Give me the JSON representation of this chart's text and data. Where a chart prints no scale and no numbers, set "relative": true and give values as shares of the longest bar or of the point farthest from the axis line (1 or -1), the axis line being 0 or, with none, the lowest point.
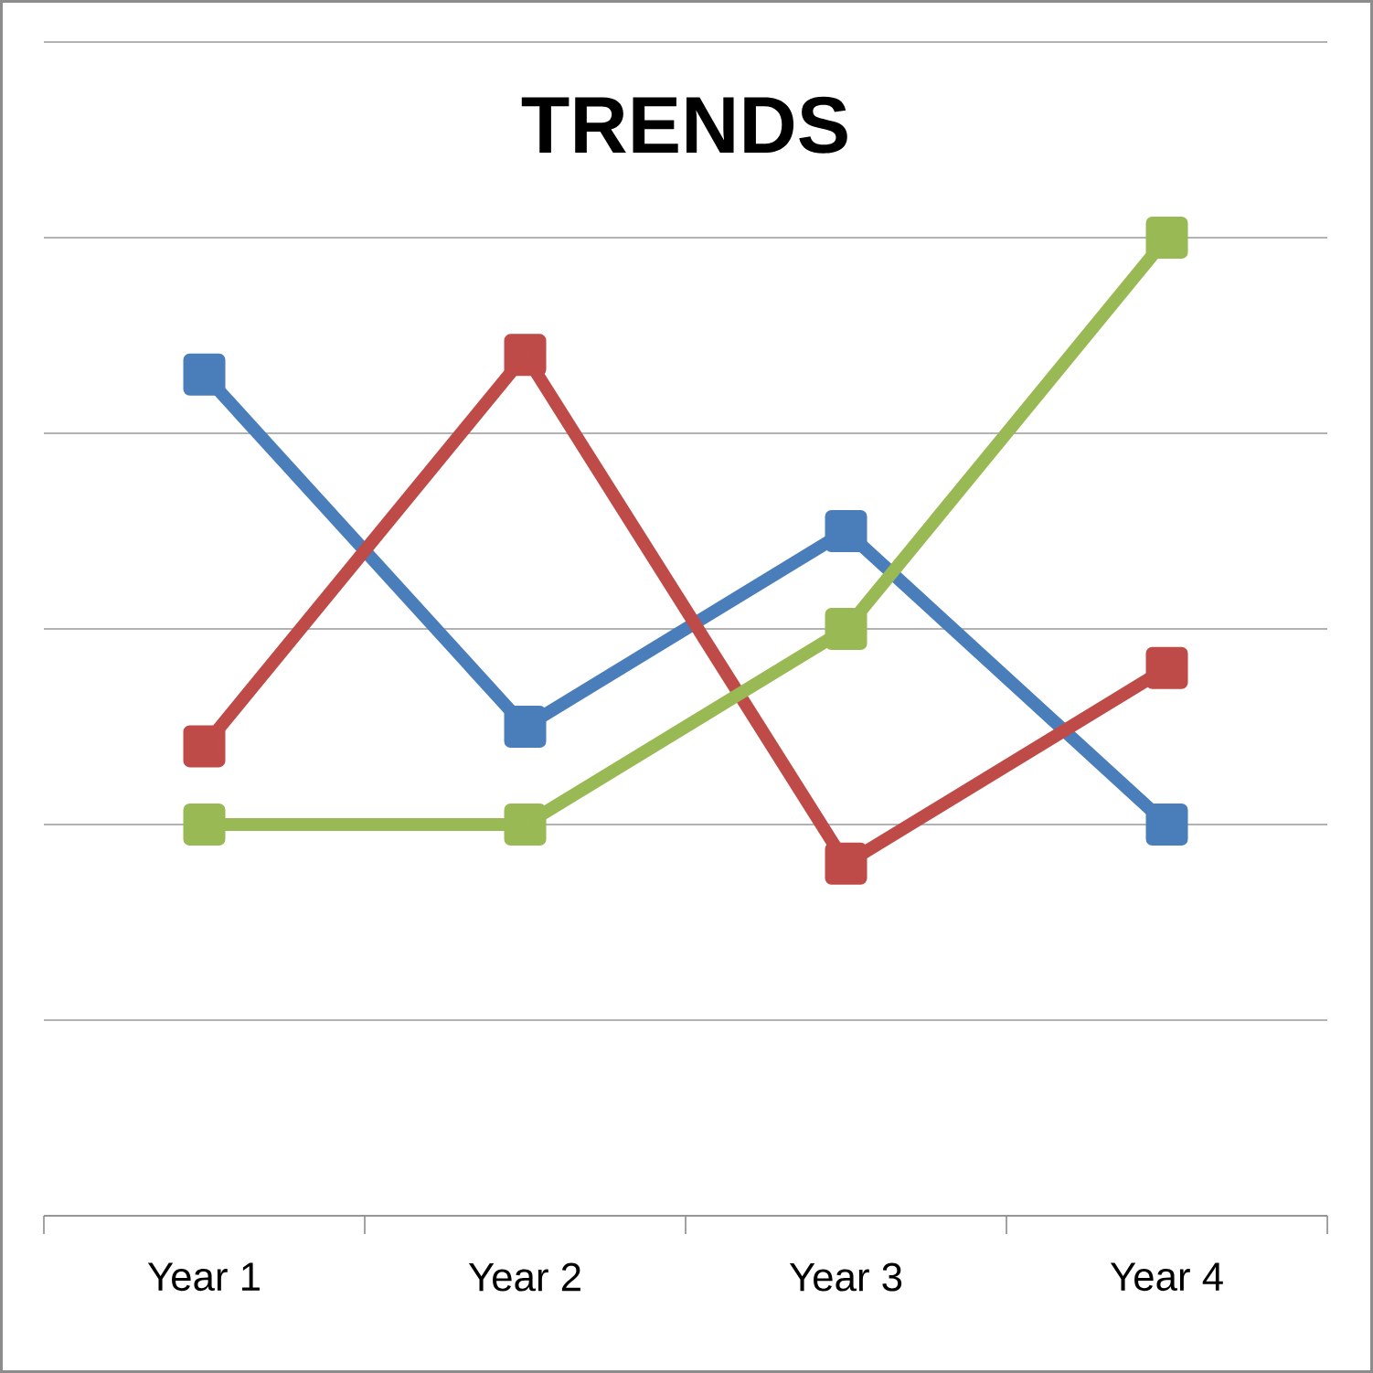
{
  "chart_data": {
    "type": "line",
    "title": "TRENDS",
    "relative": true,
    "categories": [
      "Year 1",
      "Year 2",
      "Year 3",
      "Year 4"
    ],
    "series": [
      {
        "color": "#4a7ebb",
        "values": [
          0.86,
          0.5,
          0.7,
          0.4
        ]
      },
      {
        "color": "#be4b48",
        "values": [
          0.48,
          0.88,
          0.36,
          0.56
        ]
      },
      {
        "color": "#98b954",
        "values": [
          0.4,
          0.4,
          0.6,
          1.0
        ]
      }
    ],
    "marker": "square",
    "line_style": "solid",
    "grid": "y"
  }
}
